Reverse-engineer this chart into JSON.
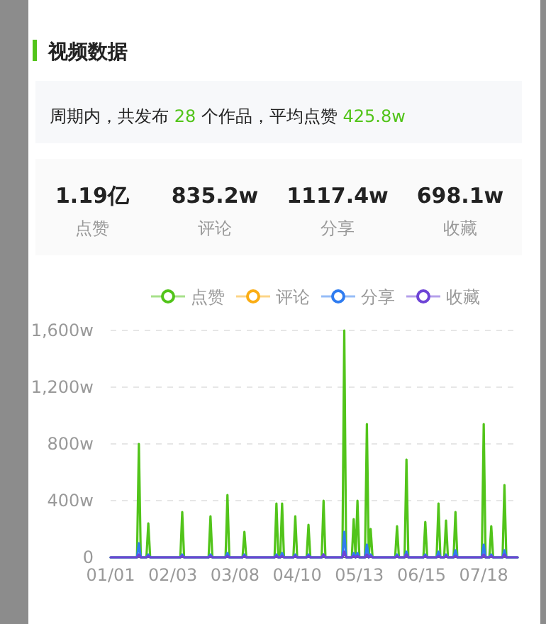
{
  "chart_data": {
    "type": "line",
    "title": "视频数据",
    "subtitle": "周期内，共发布 28 个作品，平均点赞 425.8w",
    "annotations": [
      "1.19亿",
      "点赞",
      "835.2w",
      "评论",
      "1117.4w",
      "分享",
      "698.1w",
      "收藏"
    ],
    "x": [
      "--01-01",
      "--01-15",
      "--01-16",
      "--01-17",
      "--01-20",
      "--01-21",
      "--01-22",
      "--02-07",
      "--02-08",
      "--02-09",
      "--02-22",
      "--02-23",
      "--02-24",
      "--03-03",
      "--03-04",
      "--03-05",
      "--03-12",
      "--03-13",
      "--03-14",
      "--03-29",
      "--03-30",
      "--03-31",
      "--04-01",
      "--04-02",
      "--04-03",
      "--04-08",
      "--04-09",
      "--04-10",
      "--04-15",
      "--04-16",
      "--04-17",
      "--04-23",
      "--04-24",
      "--04-25",
      "--05-04",
      "--05-05",
      "--05-06",
      "--05-09",
      "--05-10",
      "--05-11",
      "--05-12",
      "--05-13",
      "--05-16",
      "--05-17",
      "--05-18",
      "--05-19",
      "--05-20",
      "--06-01",
      "--06-02",
      "--06-03",
      "--06-06",
      "--06-07",
      "--06-08",
      "--06-16",
      "--06-17",
      "--06-18",
      "--06-23",
      "--06-24",
      "--06-25",
      "--06-27",
      "--06-28",
      "--06-29",
      "--07-02",
      "--07-03",
      "--07-04",
      "--07-17",
      "--07-18",
      "--07-19",
      "--07-21",
      "--07-22",
      "--07-23",
      "--07-28",
      "--07-29",
      "--07-30",
      "--08-05"
    ],
    "series": [
      {
        "name": "点赞",
        "color": "#52c41a",
        "values": [
          0,
          0,
          800,
          0,
          0,
          240,
          0,
          0,
          320,
          0,
          0,
          290,
          0,
          0,
          440,
          0,
          0,
          180,
          0,
          0,
          380,
          0,
          0,
          380,
          0,
          0,
          290,
          0,
          0,
          230,
          0,
          0,
          400,
          0,
          0,
          1600,
          0,
          0,
          270,
          0,
          400,
          0,
          0,
          940,
          0,
          200,
          0,
          0,
          220,
          0,
          0,
          690,
          0,
          0,
          250,
          0,
          0,
          380,
          0,
          0,
          260,
          0,
          0,
          320,
          0,
          0,
          940,
          0,
          0,
          220,
          0,
          0,
          510,
          0,
          0
        ]
      },
      {
        "name": "评论",
        "color": "#faad14",
        "values": [
          null,
          null,
          null,
          null,
          null,
          null,
          null,
          null,
          null,
          null,
          null,
          null,
          null,
          null,
          null,
          null,
          null,
          null,
          null,
          null,
          null,
          null,
          null,
          null,
          null,
          null,
          null,
          null,
          null,
          null,
          null,
          null,
          null,
          null,
          null,
          null,
          null,
          null,
          null,
          null,
          null,
          null,
          null,
          null,
          null,
          null,
          null,
          null,
          null,
          null,
          null,
          null,
          null,
          null,
          null,
          null,
          null,
          null,
          null,
          null,
          null,
          null,
          null,
          null,
          null,
          null,
          null,
          null,
          null,
          null,
          null,
          null,
          null,
          null,
          null
        ]
      },
      {
        "name": "分享",
        "color": "#2f7cf0",
        "values": [
          0,
          0,
          100,
          0,
          0,
          20,
          0,
          0,
          20,
          0,
          0,
          20,
          0,
          0,
          30,
          0,
          0,
          20,
          0,
          0,
          20,
          0,
          0,
          30,
          0,
          0,
          20,
          0,
          0,
          20,
          0,
          0,
          20,
          0,
          0,
          180,
          0,
          0,
          30,
          0,
          30,
          0,
          0,
          90,
          0,
          20,
          0,
          0,
          20,
          0,
          0,
          40,
          0,
          0,
          20,
          0,
          0,
          40,
          0,
          0,
          20,
          0,
          0,
          50,
          0,
          0,
          90,
          0,
          0,
          20,
          0,
          0,
          50,
          0,
          0
        ]
      },
      {
        "name": "收藏",
        "color": "#6e44d6",
        "values": [
          0,
          0,
          20,
          0,
          0,
          10,
          0,
          0,
          10,
          0,
          0,
          10,
          0,
          0,
          10,
          0,
          0,
          10,
          0,
          0,
          10,
          0,
          0,
          10,
          0,
          0,
          10,
          0,
          0,
          10,
          0,
          0,
          20,
          0,
          0,
          40,
          0,
          0,
          10,
          0,
          10,
          0,
          0,
          20,
          0,
          10,
          0,
          0,
          10,
          0,
          0,
          20,
          0,
          0,
          10,
          0,
          0,
          10,
          0,
          0,
          10,
          0,
          0,
          10,
          0,
          0,
          20,
          0,
          0,
          10,
          0,
          0,
          20,
          0,
          0
        ]
      }
    ],
    "xlim": [
      "--01-01",
      "--08-05"
    ],
    "xticks": [
      {
        "value": "--01-01",
        "label": "01/01"
      },
      {
        "value": "--02-03",
        "label": "02/03"
      },
      {
        "value": "--03-08",
        "label": "03/08"
      },
      {
        "value": "--04-10",
        "label": "04/10"
      },
      {
        "value": "--05-13",
        "label": "05/13"
      },
      {
        "value": "--06-15",
        "label": "06/15"
      },
      {
        "value": "--07-18",
        "label": "07/18"
      }
    ],
    "ylim": [
      0,
      1600
    ],
    "yticks": [
      0,
      {
        "value": 400,
        "label": "400w"
      },
      {
        "value": 800,
        "label": "800w"
      },
      {
        "value": 1200,
        "label": "1,200w"
      },
      {
        "value": 1600,
        "label": "1,600w"
      }
    ],
    "grid": "y",
    "legend": "top",
    "marker": "none",
    "line_style": "solid"
  }
}
